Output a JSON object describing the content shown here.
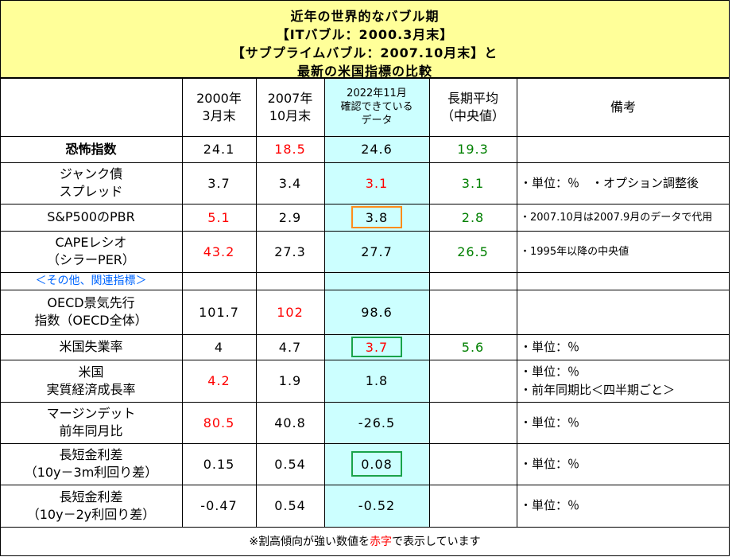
{
  "title": {
    "line1": "近年の世界的なバブル期",
    "line2": "【ITバブル：2000.3月末】",
    "line3": "【サブプライムバブル：2007.10月末】と",
    "line4": "最新の米国指標の比較"
  },
  "headers": {
    "col1": [
      "2000年",
      "3月末"
    ],
    "col2": [
      "2007年",
      "10月末"
    ],
    "col3": [
      "2022年11月",
      "確認できている",
      "データ"
    ],
    "col4": [
      "長期平均",
      "（中央値）"
    ],
    "col5": "備考"
  },
  "rows": [
    {
      "label": [
        "恐怖指数"
      ],
      "label_bold": true,
      "v2000": "24.1",
      "v2007": "18.5",
      "v2022": "24.6",
      "avg": "19.3",
      "note": [],
      "c2000": "black",
      "c2007": "red",
      "c2022": "black"
    },
    {
      "label": [
        "ジャンク債",
        "スプレッド"
      ],
      "label_bold": false,
      "v2000": "3.7",
      "v2007": "3.4",
      "v2022": "3.1",
      "avg": "3.1",
      "note": [
        "・単位：％　・オプション調整後"
      ],
      "c2000": "black",
      "c2007": "black",
      "c2022": "red"
    },
    {
      "label": [
        "S&P500のPBR"
      ],
      "label_bold": false,
      "v2000": "5.1",
      "v2007": "2.9",
      "v2022": "3.8",
      "avg": "2.8",
      "note": [
        "・2007.10月は2007.9月のデータで代用"
      ],
      "c2000": "red",
      "c2007": "black",
      "c2022": "black",
      "note_small": true
    },
    {
      "label": [
        "CAPEレシオ",
        "（シラーPER）"
      ],
      "label_bold": false,
      "v2000": "43.2",
      "v2007": "27.3",
      "v2022": "27.7",
      "avg": "26.5",
      "note": [
        "・1995年以降の中央値"
      ],
      "c2000": "red",
      "c2007": "black",
      "c2022": "black",
      "note_small": true
    },
    {
      "label": [
        "＜その他、関連指標＞"
      ],
      "label_bold": true,
      "section": true,
      "v2000": "",
      "v2007": "",
      "v2022": "",
      "avg": "",
      "note": []
    },
    {
      "label": [
        "OECD景気先行",
        "指数（OECD全体）"
      ],
      "label_bold": false,
      "v2000": "101.7",
      "v2007": "102",
      "v2022": "98.6",
      "avg": "",
      "note": [],
      "c2000": "black",
      "c2007": "red",
      "c2022": "black"
    },
    {
      "label": [
        "米国失業率"
      ],
      "label_bold": false,
      "v2000": "4",
      "v2007": "4.7",
      "v2022": "3.7",
      "avg": "5.6",
      "note": [
        "・単位：％"
      ],
      "c2000": "black",
      "c2007": "black",
      "c2022": "red"
    },
    {
      "label": [
        "米国",
        "実質経済成長率"
      ],
      "label_bold": false,
      "v2000": "4.2",
      "v2007": "1.9",
      "v2022": "1.8",
      "avg": "",
      "note": [
        "・単位：％",
        "・前年同期比＜四半期ごと＞"
      ],
      "c2000": "red",
      "c2007": "black",
      "c2022": "black"
    },
    {
      "label": [
        "マージンデット",
        "前年同月比"
      ],
      "label_bold": false,
      "v2000": "80.5",
      "v2007": "40.8",
      "v2022": "-26.5",
      "avg": "",
      "note": [
        "・単位：％"
      ],
      "c2000": "red",
      "c2007": "black",
      "c2022": "black"
    },
    {
      "label": [
        "長短金利差",
        "（10y－3m利回り差）"
      ],
      "label_bold": false,
      "v2000": "0.15",
      "v2007": "0.54",
      "v2022": "0.08",
      "avg": "",
      "note": [
        "・単位：％"
      ],
      "c2000": "black",
      "c2007": "black",
      "c2022": "black"
    },
    {
      "label": [
        "長短金利差",
        "（10y－2y利回り差）"
      ],
      "label_bold": false,
      "v2000": "-0.47",
      "v2007": "0.54",
      "v2022": "-0.52",
      "avg": "",
      "note": [
        "・単位：％"
      ],
      "c2000": "black",
      "c2007": "black",
      "c2022": "black"
    }
  ],
  "footnote": {
    "prefix": "※割高傾向が強い数値を",
    "red_word": "赤字",
    "suffix": "で表示しています"
  },
  "highlights": [
    {
      "row": 2,
      "color": "#ff8c1a"
    },
    {
      "row": 6,
      "color": "#1aa34a"
    },
    {
      "row": 9,
      "color": "#1aa34a"
    }
  ],
  "colors": {
    "title_bg": "#ffff99",
    "highlight_col_bg": "#ccffff",
    "red": "#ff0000",
    "green": "#008000",
    "section_blue": "#0066ff"
  }
}
